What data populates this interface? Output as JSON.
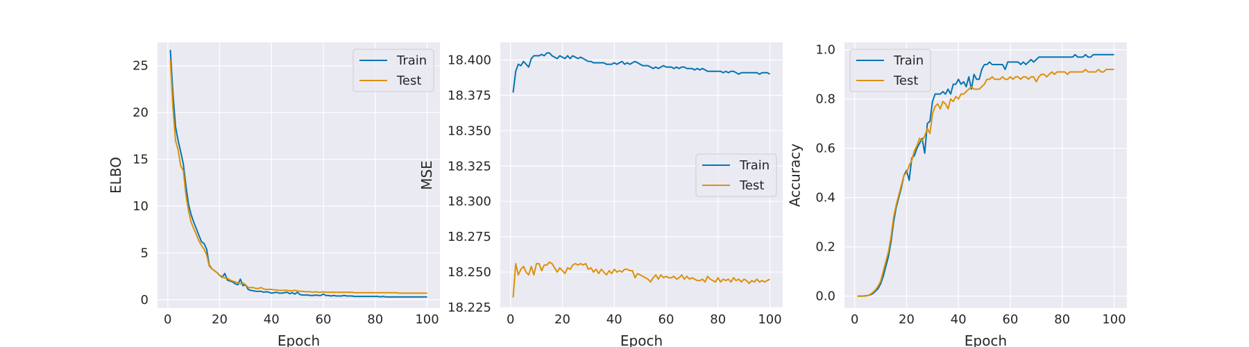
{
  "colors": {
    "train": "#0173b2",
    "test": "#de8f05",
    "axes_background": "#eaeaf2",
    "grid": "#ffffff"
  },
  "chart_data": [
    {
      "type": "line",
      "title": "",
      "xlabel": "Epoch",
      "ylabel": "ELBO",
      "xlim": [
        -3.95,
        104.95
      ],
      "ylim": [
        -0.9,
        27.5
      ],
      "xticks": [
        0,
        20,
        40,
        60,
        80,
        100
      ],
      "yticks": [
        0,
        5,
        10,
        15,
        20,
        25
      ],
      "ytick_labels": [
        "0",
        "5",
        "10",
        "15",
        "20",
        "25"
      ],
      "grid": true,
      "legend": "top-right",
      "x": [
        1,
        2,
        3,
        4,
        5,
        6,
        7,
        8,
        9,
        10,
        11,
        12,
        13,
        14,
        15,
        16,
        17,
        18,
        19,
        20,
        21,
        22,
        23,
        24,
        25,
        26,
        27,
        28,
        29,
        30,
        31,
        32,
        33,
        34,
        35,
        36,
        37,
        38,
        39,
        40,
        41,
        42,
        43,
        44,
        45,
        46,
        47,
        48,
        49,
        50,
        51,
        52,
        53,
        54,
        55,
        56,
        57,
        58,
        59,
        60,
        61,
        62,
        63,
        64,
        65,
        66,
        67,
        68,
        69,
        70,
        71,
        72,
        73,
        74,
        75,
        76,
        77,
        78,
        79,
        80,
        81,
        82,
        83,
        84,
        85,
        86,
        87,
        88,
        89,
        90,
        91,
        92,
        93,
        94,
        95,
        96,
        97,
        98,
        99,
        100
      ],
      "series": [
        {
          "name": "Train",
          "color_key": "train",
          "values": [
            26.7,
            22,
            18.5,
            17,
            15.8,
            14.5,
            12.2,
            10.2,
            9.1,
            8.3,
            7.6,
            6.9,
            6.2,
            6,
            5.4,
            3.7,
            3.3,
            3.1,
            2.9,
            2.6,
            2.4,
            2.8,
            2.1,
            2,
            1.9,
            1.7,
            1.6,
            2.2,
            1.5,
            1.6,
            1.1,
            1,
            0.95,
            0.9,
            0.9,
            0.9,
            0.8,
            0.85,
            0.8,
            0.7,
            0.75,
            0.8,
            0.7,
            0.7,
            0.75,
            0.8,
            0.65,
            0.75,
            0.6,
            0.8,
            0.55,
            0.5,
            0.5,
            0.5,
            0.45,
            0.45,
            0.5,
            0.45,
            0.45,
            0.6,
            0.45,
            0.45,
            0.4,
            0.45,
            0.4,
            0.4,
            0.4,
            0.45,
            0.4,
            0.4,
            0.4,
            0.35,
            0.35,
            0.35,
            0.35,
            0.35,
            0.35,
            0.35,
            0.35,
            0.35,
            0.35,
            0.3,
            0.35,
            0.3,
            0.3,
            0.3,
            0.3,
            0.3,
            0.3,
            0.3,
            0.3,
            0.3,
            0.3,
            0.3,
            0.3,
            0.3,
            0.3,
            0.3,
            0.3,
            0.3
          ]
        },
        {
          "name": "Test",
          "color_key": "test",
          "values": [
            25.6,
            20.5,
            17,
            16,
            14.3,
            13.8,
            11.2,
            9.5,
            8.3,
            7.6,
            7,
            6.3,
            5.8,
            5.4,
            4.8,
            3.6,
            3.3,
            3.1,
            2.9,
            2.6,
            2.5,
            2.3,
            2.3,
            2.1,
            2,
            1.9,
            1.8,
            1.7,
            1.8,
            1.6,
            1.3,
            1.3,
            1.3,
            1.2,
            1.2,
            1.3,
            1.15,
            1.1,
            1.1,
            1.1,
            1.05,
            1.05,
            1,
            1,
            1,
            1,
            0.95,
            0.95,
            1,
            0.95,
            0.9,
            0.9,
            0.85,
            0.85,
            0.85,
            0.8,
            0.85,
            0.8,
            0.8,
            0.85,
            0.8,
            0.8,
            0.8,
            0.8,
            0.8,
            0.8,
            0.8,
            0.8,
            0.8,
            0.8,
            0.8,
            0.75,
            0.75,
            0.75,
            0.75,
            0.75,
            0.75,
            0.75,
            0.75,
            0.75,
            0.75,
            0.75,
            0.75,
            0.75,
            0.75,
            0.75,
            0.75,
            0.75,
            0.7,
            0.7,
            0.7,
            0.7,
            0.7,
            0.7,
            0.7,
            0.7,
            0.7,
            0.7,
            0.7,
            0.7
          ]
        }
      ]
    },
    {
      "type": "line",
      "title": "",
      "xlabel": "Epoch",
      "ylabel": "MSE",
      "xlim": [
        -3.95,
        104.95
      ],
      "ylim": [
        18.2245,
        18.4125
      ],
      "xticks": [
        0,
        20,
        40,
        60,
        80,
        100
      ],
      "yticks": [
        18.225,
        18.25,
        18.275,
        18.3,
        18.325,
        18.35,
        18.375,
        18.4
      ],
      "ytick_labels": [
        "18.225",
        "18.250",
        "18.275",
        "18.300",
        "18.325",
        "18.350",
        "18.375",
        "18.400"
      ],
      "grid": true,
      "legend": "center-right",
      "x": [
        1,
        2,
        3,
        4,
        5,
        6,
        7,
        8,
        9,
        10,
        11,
        12,
        13,
        14,
        15,
        16,
        17,
        18,
        19,
        20,
        21,
        22,
        23,
        24,
        25,
        26,
        27,
        28,
        29,
        30,
        31,
        32,
        33,
        34,
        35,
        36,
        37,
        38,
        39,
        40,
        41,
        42,
        43,
        44,
        45,
        46,
        47,
        48,
        49,
        50,
        51,
        52,
        53,
        54,
        55,
        56,
        57,
        58,
        59,
        60,
        61,
        62,
        63,
        64,
        65,
        66,
        67,
        68,
        69,
        70,
        71,
        72,
        73,
        74,
        75,
        76,
        77,
        78,
        79,
        80,
        81,
        82,
        83,
        84,
        85,
        86,
        87,
        88,
        89,
        90,
        91,
        92,
        93,
        94,
        95,
        96,
        97,
        98,
        99,
        100
      ],
      "series": [
        {
          "name": "Train",
          "color_key": "train",
          "values": [
            18.377,
            18.392,
            18.397,
            18.396,
            18.399,
            18.397,
            18.395,
            18.401,
            18.403,
            18.403,
            18.403,
            18.404,
            18.403,
            18.405,
            18.405,
            18.403,
            18.402,
            18.401,
            18.403,
            18.402,
            18.401,
            18.403,
            18.401,
            18.403,
            18.402,
            18.401,
            18.402,
            18.401,
            18.4,
            18.399,
            18.399,
            18.398,
            18.398,
            18.398,
            18.398,
            18.398,
            18.397,
            18.397,
            18.397,
            18.398,
            18.397,
            18.398,
            18.399,
            18.397,
            18.398,
            18.397,
            18.398,
            18.399,
            18.398,
            18.397,
            18.396,
            18.396,
            18.396,
            18.395,
            18.394,
            18.395,
            18.394,
            18.395,
            18.396,
            18.395,
            18.395,
            18.395,
            18.394,
            18.395,
            18.394,
            18.395,
            18.395,
            18.394,
            18.394,
            18.394,
            18.393,
            18.394,
            18.393,
            18.394,
            18.393,
            18.392,
            18.392,
            18.392,
            18.392,
            18.392,
            18.392,
            18.391,
            18.392,
            18.391,
            18.392,
            18.392,
            18.391,
            18.39,
            18.391,
            18.391,
            18.391,
            18.391,
            18.391,
            18.391,
            18.391,
            18.39,
            18.391,
            18.391,
            18.391,
            18.39
          ]
        },
        {
          "name": "Test",
          "color_key": "test",
          "values": [
            18.232,
            18.256,
            18.248,
            18.252,
            18.254,
            18.25,
            18.248,
            18.254,
            18.248,
            18.256,
            18.256,
            18.251,
            18.255,
            18.255,
            18.257,
            18.256,
            18.253,
            18.25,
            18.253,
            18.251,
            18.249,
            18.253,
            18.252,
            18.255,
            18.256,
            18.255,
            18.256,
            18.255,
            18.256,
            18.252,
            18.253,
            18.25,
            18.252,
            18.249,
            18.252,
            18.25,
            18.248,
            18.251,
            18.249,
            18.252,
            18.25,
            18.251,
            18.25,
            18.252,
            18.252,
            18.251,
            18.251,
            18.246,
            18.249,
            18.248,
            18.247,
            18.246,
            18.245,
            18.243,
            18.246,
            18.248,
            18.245,
            18.248,
            18.246,
            18.247,
            18.246,
            18.246,
            18.247,
            18.245,
            18.246,
            18.248,
            18.245,
            18.247,
            18.245,
            18.246,
            18.245,
            18.244,
            18.244,
            18.245,
            18.243,
            18.247,
            18.245,
            18.244,
            18.243,
            18.246,
            18.243,
            18.245,
            18.244,
            18.245,
            18.243,
            18.246,
            18.244,
            18.245,
            18.243,
            18.245,
            18.244,
            18.242,
            18.244,
            18.243,
            18.245,
            18.243,
            18.244,
            18.243,
            18.244,
            18.245
          ]
        }
      ]
    },
    {
      "type": "line",
      "title": "",
      "xlabel": "Epoch",
      "ylabel": "Accuracy",
      "xlim": [
        -3.95,
        104.95
      ],
      "ylim": [
        -0.049,
        1.03
      ],
      "xticks": [
        0,
        20,
        40,
        60,
        80,
        100
      ],
      "yticks": [
        0,
        0.2,
        0.4,
        0.6,
        0.8,
        1.0
      ],
      "ytick_labels": [
        "0.0",
        "0.2",
        "0.4",
        "0.6",
        "0.8",
        "1.0"
      ],
      "grid": true,
      "legend": "top-left",
      "x": [
        1,
        2,
        3,
        4,
        5,
        6,
        7,
        8,
        9,
        10,
        11,
        12,
        13,
        14,
        15,
        16,
        17,
        18,
        19,
        20,
        21,
        22,
        23,
        24,
        25,
        26,
        27,
        28,
        29,
        30,
        31,
        32,
        33,
        34,
        35,
        36,
        37,
        38,
        39,
        40,
        41,
        42,
        43,
        44,
        45,
        46,
        47,
        48,
        49,
        50,
        51,
        52,
        53,
        54,
        55,
        56,
        57,
        58,
        59,
        60,
        61,
        62,
        63,
        64,
        65,
        66,
        67,
        68,
        69,
        70,
        71,
        72,
        73,
        74,
        75,
        76,
        77,
        78,
        79,
        80,
        81,
        82,
        83,
        84,
        85,
        86,
        87,
        88,
        89,
        90,
        91,
        92,
        93,
        94,
        95,
        96,
        97,
        98,
        99,
        100
      ],
      "series": [
        {
          "name": "Train",
          "color_key": "train",
          "values": [
            0,
            0,
            0,
            0.001,
            0.002,
            0.005,
            0.01,
            0.02,
            0.03,
            0.05,
            0.08,
            0.12,
            0.16,
            0.22,
            0.3,
            0.36,
            0.4,
            0.44,
            0.49,
            0.51,
            0.47,
            0.56,
            0.57,
            0.6,
            0.62,
            0.64,
            0.58,
            0.7,
            0.71,
            0.79,
            0.82,
            0.82,
            0.82,
            0.83,
            0.82,
            0.84,
            0.82,
            0.86,
            0.86,
            0.88,
            0.86,
            0.87,
            0.85,
            0.89,
            0.84,
            0.9,
            0.88,
            0.88,
            0.92,
            0.94,
            0.94,
            0.95,
            0.94,
            0.94,
            0.94,
            0.94,
            0.94,
            0.92,
            0.95,
            0.95,
            0.95,
            0.95,
            0.95,
            0.94,
            0.95,
            0.94,
            0.95,
            0.96,
            0.95,
            0.96,
            0.97,
            0.97,
            0.97,
            0.97,
            0.97,
            0.97,
            0.97,
            0.97,
            0.97,
            0.97,
            0.97,
            0.97,
            0.97,
            0.97,
            0.98,
            0.97,
            0.97,
            0.97,
            0.98,
            0.97,
            0.97,
            0.98,
            0.98,
            0.98,
            0.98,
            0.98,
            0.98,
            0.98,
            0.98,
            0.98
          ]
        },
        {
          "name": "Test",
          "color_key": "test",
          "values": [
            0,
            0,
            0,
            0,
            0.002,
            0.007,
            0.015,
            0.025,
            0.04,
            0.06,
            0.1,
            0.14,
            0.18,
            0.24,
            0.32,
            0.37,
            0.41,
            0.45,
            0.49,
            0.5,
            0.53,
            0.55,
            0.59,
            0.61,
            0.64,
            0.63,
            0.65,
            0.68,
            0.66,
            0.74,
            0.77,
            0.78,
            0.76,
            0.79,
            0.78,
            0.76,
            0.8,
            0.79,
            0.81,
            0.8,
            0.82,
            0.82,
            0.83,
            0.84,
            0.85,
            0.84,
            0.84,
            0.84,
            0.85,
            0.86,
            0.88,
            0.88,
            0.89,
            0.88,
            0.88,
            0.88,
            0.89,
            0.88,
            0.88,
            0.89,
            0.88,
            0.89,
            0.89,
            0.88,
            0.89,
            0.89,
            0.88,
            0.89,
            0.89,
            0.87,
            0.89,
            0.9,
            0.9,
            0.89,
            0.9,
            0.91,
            0.9,
            0.91,
            0.91,
            0.91,
            0.91,
            0.9,
            0.91,
            0.91,
            0.91,
            0.91,
            0.91,
            0.91,
            0.92,
            0.91,
            0.91,
            0.91,
            0.91,
            0.92,
            0.91,
            0.91,
            0.92,
            0.92,
            0.92,
            0.92
          ]
        }
      ]
    }
  ]
}
